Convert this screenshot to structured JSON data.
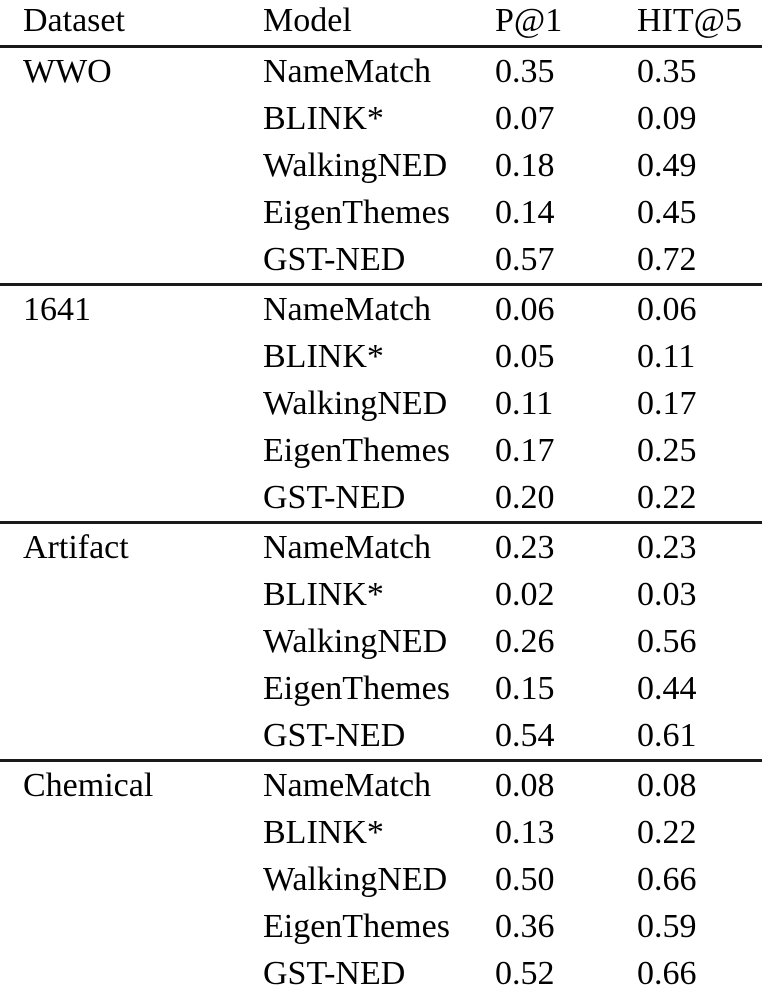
{
  "table": {
    "columns": [
      {
        "label": "Dataset"
      },
      {
        "label": "Model"
      },
      {
        "label": "P@1"
      },
      {
        "label": "HIT@5"
      }
    ],
    "groups": [
      {
        "dataset": "WWO",
        "rows": [
          {
            "model": "NameMatch",
            "p_at_1": "0.35",
            "hit_at_5": "0.35",
            "p_at_1_bold": false,
            "hit_at_5_bold": false
          },
          {
            "model": "BLINK*",
            "p_at_1": "0.07",
            "hit_at_5": "0.09",
            "p_at_1_bold": false,
            "hit_at_5_bold": false
          },
          {
            "model": "WalkingNED",
            "p_at_1": "0.18",
            "hit_at_5": "0.49",
            "p_at_1_bold": false,
            "hit_at_5_bold": false
          },
          {
            "model": "EigenThemes",
            "p_at_1": "0.14",
            "hit_at_5": "0.45",
            "p_at_1_bold": false,
            "hit_at_5_bold": false
          },
          {
            "model": "GST-NED",
            "p_at_1": "0.57",
            "hit_at_5": "0.72",
            "p_at_1_bold": true,
            "hit_at_5_bold": true
          }
        ]
      },
      {
        "dataset": "1641",
        "rows": [
          {
            "model": "NameMatch",
            "p_at_1": "0.06",
            "hit_at_5": "0.06",
            "p_at_1_bold": false,
            "hit_at_5_bold": false
          },
          {
            "model": "BLINK*",
            "p_at_1": "0.05",
            "hit_at_5": "0.11",
            "p_at_1_bold": false,
            "hit_at_5_bold": false
          },
          {
            "model": "WalkingNED",
            "p_at_1": "0.11",
            "hit_at_5": "0.17",
            "p_at_1_bold": false,
            "hit_at_5_bold": false
          },
          {
            "model": "EigenThemes",
            "p_at_1": "0.17",
            "hit_at_5": "0.25",
            "p_at_1_bold": false,
            "hit_at_5_bold": true
          },
          {
            "model": "GST-NED",
            "p_at_1": "0.20",
            "hit_at_5": "0.22",
            "p_at_1_bold": true,
            "hit_at_5_bold": false
          }
        ]
      },
      {
        "dataset": "Artifact",
        "rows": [
          {
            "model": "NameMatch",
            "p_at_1": "0.23",
            "hit_at_5": "0.23",
            "p_at_1_bold": false,
            "hit_at_5_bold": false
          },
          {
            "model": "BLINK*",
            "p_at_1": "0.02",
            "hit_at_5": "0.03",
            "p_at_1_bold": false,
            "hit_at_5_bold": false
          },
          {
            "model": "WalkingNED",
            "p_at_1": "0.26",
            "hit_at_5": "0.56",
            "p_at_1_bold": false,
            "hit_at_5_bold": false
          },
          {
            "model": "EigenThemes",
            "p_at_1": "0.15",
            "hit_at_5": "0.44",
            "p_at_1_bold": false,
            "hit_at_5_bold": false
          },
          {
            "model": "GST-NED",
            "p_at_1": "0.54",
            "hit_at_5": "0.61",
            "p_at_1_bold": true,
            "hit_at_5_bold": true
          }
        ]
      },
      {
        "dataset": "Chemical",
        "rows": [
          {
            "model": "NameMatch",
            "p_at_1": "0.08",
            "hit_at_5": "0.08",
            "p_at_1_bold": false,
            "hit_at_5_bold": false
          },
          {
            "model": "BLINK*",
            "p_at_1": "0.13",
            "hit_at_5": "0.22",
            "p_at_1_bold": false,
            "hit_at_5_bold": false
          },
          {
            "model": "WalkingNED",
            "p_at_1": "0.50",
            "hit_at_5": "0.66",
            "p_at_1_bold": false,
            "hit_at_5_bold": true
          },
          {
            "model": "EigenThemes",
            "p_at_1": "0.36",
            "hit_at_5": "0.59",
            "p_at_1_bold": false,
            "hit_at_5_bold": false
          },
          {
            "model": "GST-NED",
            "p_at_1": "0.52",
            "hit_at_5": "0.66",
            "p_at_1_bold": true,
            "hit_at_5_bold": true
          }
        ]
      }
    ]
  }
}
